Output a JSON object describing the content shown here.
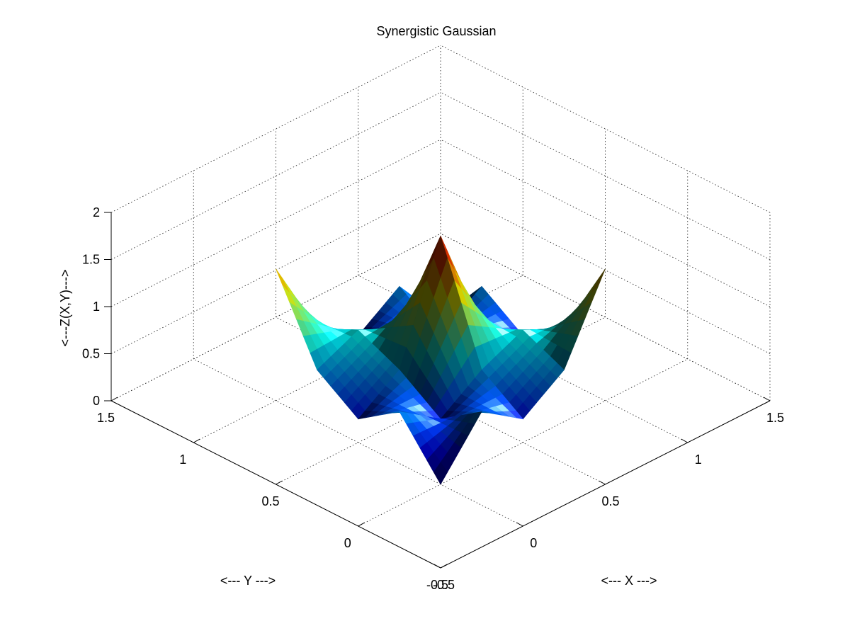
{
  "chart_data": {
    "type": "surface3d",
    "title": "Synergistic Gaussian",
    "xlabel": "<--- X --->",
    "ylabel": "<--- Y --->",
    "zlabel": "<---Z(X,Y)--->",
    "xlim": [
      -0.5,
      1.5
    ],
    "ylim": [
      -0.5,
      1.5
    ],
    "zlim": [
      0,
      2
    ],
    "x_ticks": [
      "-0.5",
      "0",
      "0.5",
      "1",
      "1.5"
    ],
    "y_ticks": [
      "-0.5",
      "0",
      "0.5",
      "1",
      "1.5"
    ],
    "z_ticks": [
      "0",
      "0.5",
      "1",
      "1.5",
      "2"
    ],
    "grid": true,
    "colormap": "jet",
    "x": [
      0,
      0.25,
      0.5,
      0.75,
      1.0
    ],
    "y": [
      0,
      0.25,
      0.5,
      0.75,
      1.0
    ],
    "z": [
      [
        0.0,
        0.55,
        0.25,
        0.55,
        1.4
      ],
      [
        0.55,
        0.25,
        0.55,
        0.75,
        0.55
      ],
      [
        0.25,
        0.55,
        1.75,
        0.55,
        0.25
      ],
      [
        0.55,
        0.75,
        0.55,
        0.25,
        0.55
      ],
      [
        1.4,
        0.55,
        0.25,
        0.55,
        0.0
      ]
    ]
  }
}
